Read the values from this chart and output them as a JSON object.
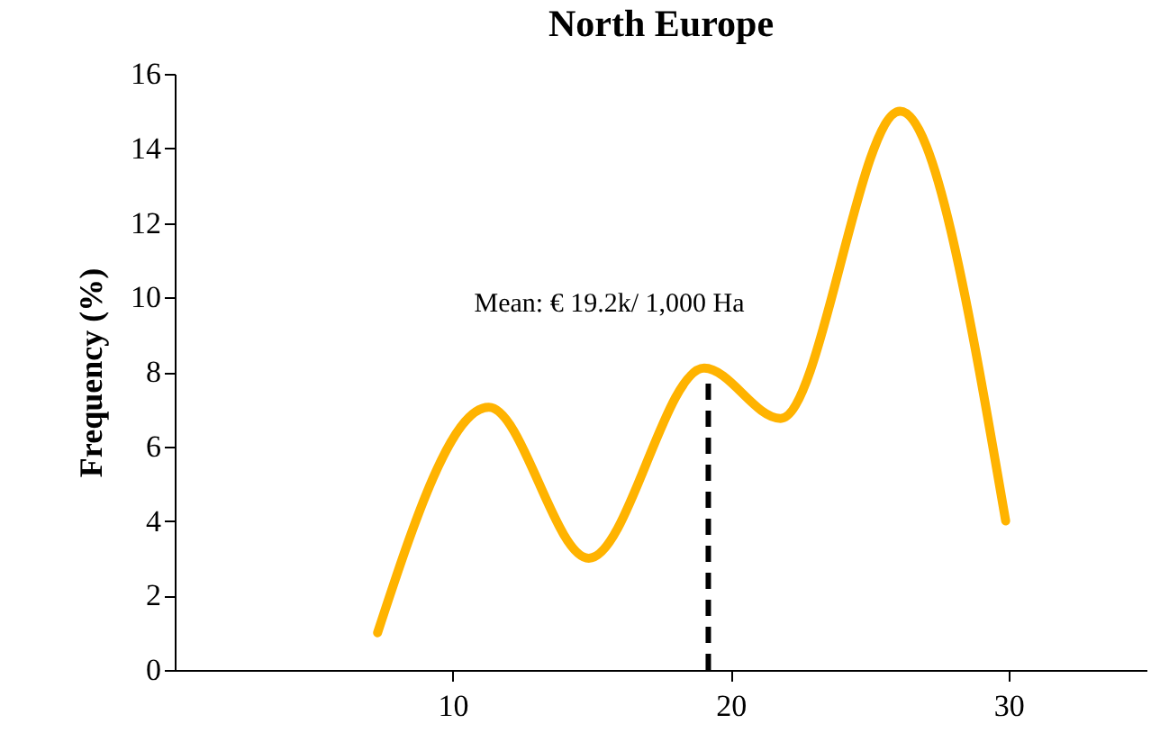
{
  "chart_data": {
    "type": "line",
    "title": "North Europe",
    "ylabel": "Frequency (%)",
    "x": [
      7.3,
      11.3,
      14.9,
      19.05,
      21.8,
      26.1,
      29.9
    ],
    "series": [
      {
        "color": "#ffb300",
        "values": [
          1.0,
          7.05,
          3.0,
          8.1,
          6.75,
          15.0,
          4.0
        ]
      }
    ],
    "xlim": [
      0,
      35
    ],
    "xticks": [
      10,
      20,
      30
    ],
    "ylim": [
      0,
      16
    ],
    "yticks": [
      0,
      2,
      4,
      6,
      8,
      10,
      12,
      14,
      16
    ],
    "ref_lines": [
      {
        "axis": "x",
        "value": 19.2,
        "label": "Mean: € 19.2k/ 1,000 Ha",
        "color": "#000000",
        "line_style": "dashed"
      }
    ],
    "grid": false,
    "marker": "none",
    "line_style": "solid"
  }
}
